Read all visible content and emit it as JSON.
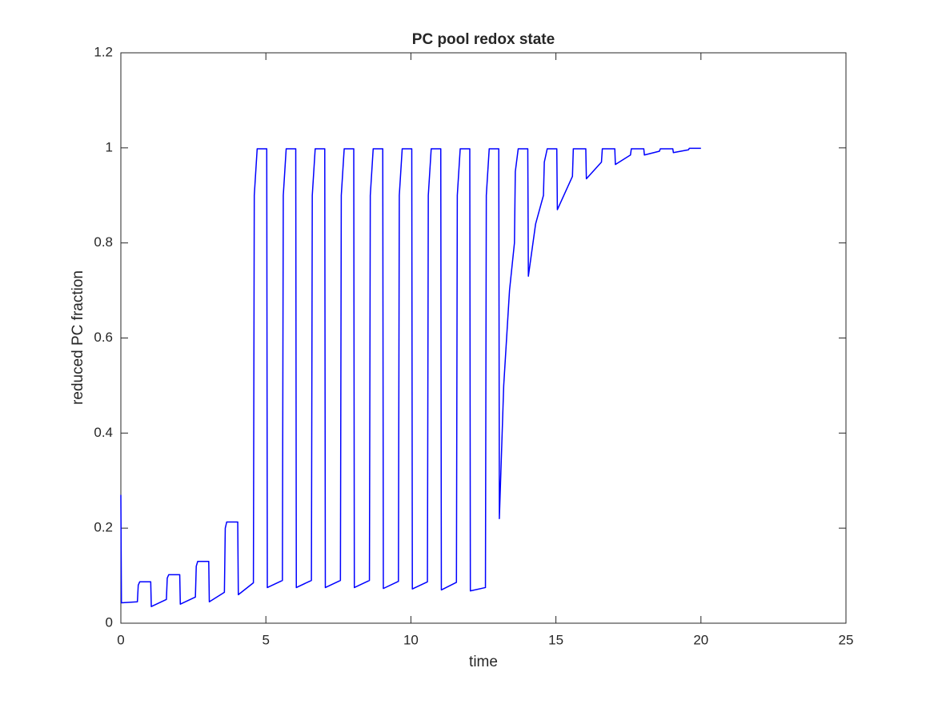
{
  "chart_data": {
    "type": "line",
    "title": "PC pool redox state",
    "xlabel": "time",
    "ylabel": "reduced PC fraction",
    "xlim": [
      0,
      25
    ],
    "ylim": [
      0,
      1.2
    ],
    "xticks": [
      0,
      5,
      10,
      15,
      20,
      25
    ],
    "yticks": [
      0,
      0.2,
      0.4,
      0.6,
      0.8,
      1,
      1.2
    ],
    "series": [
      {
        "color": "#0000ff",
        "x": [
          0,
          0.02,
          0.57,
          0.6,
          0.65,
          1.03,
          1.05,
          1.57,
          1.6,
          1.65,
          2.03,
          2.05,
          2.57,
          2.6,
          2.65,
          3.03,
          3.05,
          3.57,
          3.6,
          3.65,
          4.03,
          4.05,
          4.57,
          4.6,
          4.7,
          5.03,
          5.05,
          5.57,
          5.6,
          5.7,
          6.03,
          6.05,
          6.57,
          6.6,
          6.7,
          7.03,
          7.05,
          7.57,
          7.6,
          7.7,
          8.03,
          8.05,
          8.57,
          8.6,
          8.7,
          9.03,
          9.05,
          9.57,
          9.6,
          9.7,
          10.03,
          10.05,
          10.57,
          10.6,
          10.7,
          11.03,
          11.05,
          11.57,
          11.6,
          11.7,
          12.03,
          12.05,
          12.57,
          12.6,
          12.7,
          13.03,
          13.05,
          13.2,
          13.4,
          13.57,
          13.6,
          13.7,
          14.03,
          14.05,
          14.3,
          14.57,
          14.6,
          14.7,
          15.03,
          15.05,
          15.57,
          15.6,
          16.03,
          16.05,
          16.57,
          16.6,
          17.03,
          17.05,
          17.57,
          17.6,
          18.03,
          18.05,
          18.57,
          18.6,
          19.03,
          19.05,
          19.57,
          19.6,
          20
        ],
        "values": [
          0.27,
          0.043,
          0.045,
          0.08,
          0.087,
          0.087,
          0.035,
          0.05,
          0.095,
          0.102,
          0.102,
          0.04,
          0.055,
          0.12,
          0.13,
          0.13,
          0.045,
          0.065,
          0.2,
          0.213,
          0.213,
          0.06,
          0.085,
          0.9,
          0.998,
          0.998,
          0.075,
          0.09,
          0.9,
          0.998,
          0.998,
          0.075,
          0.09,
          0.9,
          0.998,
          0.998,
          0.075,
          0.09,
          0.9,
          0.998,
          0.998,
          0.075,
          0.09,
          0.9,
          0.998,
          0.998,
          0.073,
          0.088,
          0.9,
          0.998,
          0.998,
          0.072,
          0.087,
          0.9,
          0.998,
          0.998,
          0.07,
          0.086,
          0.9,
          0.998,
          0.998,
          0.068,
          0.075,
          0.9,
          0.998,
          0.998,
          0.22,
          0.5,
          0.7,
          0.8,
          0.95,
          0.998,
          0.998,
          0.73,
          0.84,
          0.9,
          0.97,
          0.998,
          0.998,
          0.87,
          0.94,
          0.998,
          0.998,
          0.935,
          0.97,
          0.998,
          0.998,
          0.965,
          0.985,
          0.998,
          0.998,
          0.985,
          0.993,
          0.998,
          0.998,
          0.99,
          0.996,
          0.999,
          0.999
        ]
      }
    ]
  }
}
